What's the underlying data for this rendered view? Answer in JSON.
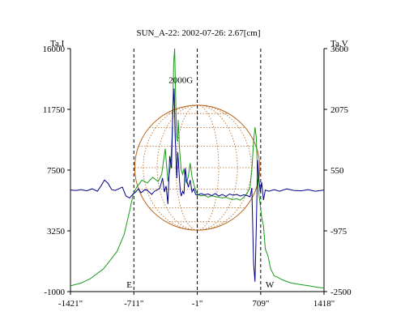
{
  "chart_data": {
    "type": "line",
    "title": "SUN_A-22: 2002-07-26: 2.67[cm]",
    "y_left_label": "Ta,I",
    "y_right_label": "Ta,V",
    "x_ticks": [
      "-1421\"",
      "-711\"",
      "-1\"",
      "709\"",
      "1418\""
    ],
    "x_tick_values": [
      -1421,
      -711,
      -1,
      709,
      1418
    ],
    "xlim": [
      -1421,
      1418
    ],
    "y_left_ticks": [
      16000,
      11750,
      7500,
      3250,
      -1000
    ],
    "y_left_tick_labels": [
      "16000",
      "11750",
      "7500",
      "3250",
      "-1000"
    ],
    "y_left_lim": [
      -1000,
      16000
    ],
    "y_right_ticks": [
      3600,
      2075,
      550,
      -975,
      -2500
    ],
    "y_right_tick_labels": [
      "3600",
      "2075",
      "550",
      "-975",
      "-2500"
    ],
    "y_right_lim": [
      -2500,
      3600
    ],
    "limb_markers": [
      {
        "label": "E",
        "x": -711
      },
      {
        "label": "W",
        "x": 709
      }
    ],
    "center_marker_x": -1,
    "disk_radius_arcsec": 700,
    "annotations": [
      {
        "text": "2000G",
        "x": -185,
        "y": 13600
      }
    ],
    "series": [
      {
        "axis": "left",
        "color": "#1a9a1a",
        "x": [
          -1421,
          -1300,
          -1200,
          -1050,
          -900,
          -820,
          -760,
          -720,
          -680,
          -620,
          -560,
          -500,
          -440,
          -400,
          -360,
          -330,
          -300,
          -280,
          -265,
          -255,
          -245,
          -235,
          -225,
          -215,
          -200,
          -190,
          -180,
          -165,
          -150,
          -135,
          -120,
          -100,
          -80,
          -60,
          -40,
          -20,
          0,
          40,
          80,
          120,
          160,
          200,
          240,
          280,
          320,
          360,
          400,
          440,
          480,
          520,
          560,
          590,
          610,
          630,
          645,
          660,
          675,
          690,
          705,
          720,
          740,
          760,
          790,
          820,
          860,
          900,
          960,
          1050,
          1150,
          1250,
          1350,
          1418
        ],
        "y": [
          -600,
          -400,
          -100,
          600,
          1800,
          3000,
          4600,
          5800,
          6300,
          6800,
          6600,
          7000,
          6700,
          7200,
          9000,
          6700,
          7800,
          10200,
          15000,
          16000,
          13000,
          10000,
          9500,
          11000,
          9000,
          8200,
          7500,
          7200,
          7600,
          6800,
          6600,
          7100,
          8000,
          7000,
          6500,
          6100,
          5800,
          5700,
          5750,
          5600,
          5700,
          5650,
          5600,
          5550,
          5600,
          5500,
          5450,
          5500,
          5400,
          5600,
          5900,
          6300,
          7500,
          9500,
          10500,
          9800,
          7000,
          5800,
          5000,
          4200,
          3600,
          2000,
          1500,
          600,
          100,
          0,
          -200,
          -400,
          -500,
          -600,
          -700,
          -750
        ]
      },
      {
        "axis": "right",
        "color": "#00008b",
        "x": [
          -1421,
          -1360,
          -1300,
          -1240,
          -1180,
          -1120,
          -1080,
          -1040,
          -1000,
          -960,
          -920,
          -880,
          -840,
          -800,
          -760,
          -720,
          -690,
          -660,
          -630,
          -600,
          -570,
          -540,
          -510,
          -480,
          -450,
          -420,
          -390,
          -370,
          -350,
          -330,
          -310,
          -290,
          -275,
          -260,
          -250,
          -240,
          -230,
          -220,
          -210,
          -200,
          -190,
          -180,
          -165,
          -150,
          -135,
          -120,
          -100,
          -80,
          -60,
          -40,
          -20,
          0,
          40,
          80,
          120,
          160,
          200,
          240,
          280,
          320,
          360,
          400,
          440,
          480,
          520,
          560,
          590,
          610,
          630,
          645,
          660,
          675,
          690,
          705,
          720,
          740,
          760,
          800,
          860,
          920,
          1000,
          1080,
          1160,
          1240,
          1320,
          1418
        ],
        "y": [
          50,
          40,
          60,
          30,
          80,
          20,
          150,
          300,
          220,
          60,
          40,
          80,
          120,
          -100,
          -150,
          -50,
          0,
          80,
          -20,
          40,
          60,
          0,
          -60,
          20,
          50,
          100,
          350,
          0,
          150,
          -300,
          900,
          600,
          2000,
          2600,
          1500,
          900,
          350,
          1000,
          700,
          300,
          0,
          -100,
          20,
          -50,
          600,
          300,
          120,
          300,
          0,
          80,
          -60,
          -80,
          -40,
          -70,
          -50,
          -90,
          -40,
          -100,
          -60,
          -110,
          -50,
          -80,
          -60,
          -100,
          -70,
          -90,
          -120,
          100,
          -1800,
          -2250,
          -900,
          800,
          300,
          0,
          250,
          -200,
          50,
          20,
          60,
          20,
          80,
          40,
          30,
          60,
          20,
          50
        ]
      }
    ]
  }
}
